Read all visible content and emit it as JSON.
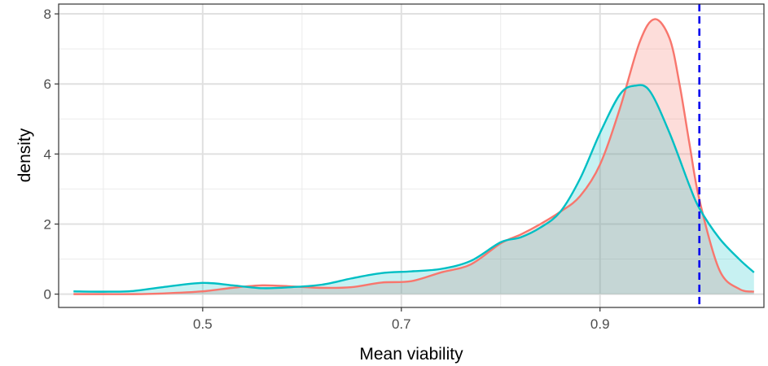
{
  "chart_data": {
    "type": "area",
    "xlabel": "Mean viability",
    "ylabel": "density",
    "xlim": [
      0.355,
      1.065
    ],
    "ylim": [
      -0.38,
      8.28
    ],
    "x_ticks": [
      0.5,
      0.7,
      0.9
    ],
    "x_tick_labels": [
      "0.5",
      "0.7",
      "0.9"
    ],
    "y_ticks": [
      0,
      2,
      4,
      6,
      8
    ],
    "y_tick_labels": [
      "0",
      "2",
      "4",
      "6",
      "8"
    ],
    "x_minor_ticks": [
      0.4,
      0.6,
      0.8,
      1.0
    ],
    "y_minor_ticks": [
      1,
      3,
      5,
      7
    ],
    "grid": true,
    "legend": "none",
    "reference_line": {
      "x": 1.0,
      "style": "dashed",
      "color": "#0000ee"
    },
    "series": [
      {
        "color": "#f8766d",
        "fill": "rgba(248,118,109,0.25)",
        "x": [
          0.37,
          0.4,
          0.43,
          0.46,
          0.5,
          0.53,
          0.56,
          0.59,
          0.62,
          0.65,
          0.68,
          0.71,
          0.74,
          0.77,
          0.8,
          0.82,
          0.84,
          0.86,
          0.88,
          0.9,
          0.92,
          0.94,
          0.955,
          0.97,
          0.98,
          0.99,
          1.0,
          1.02,
          1.04,
          1.055
        ],
        "y": [
          0.0,
          0.0,
          0.0,
          0.02,
          0.08,
          0.18,
          0.25,
          0.22,
          0.18,
          0.2,
          0.33,
          0.37,
          0.62,
          0.85,
          1.45,
          1.7,
          2.0,
          2.35,
          2.8,
          3.7,
          5.3,
          7.2,
          7.85,
          7.3,
          6.0,
          4.3,
          2.7,
          0.7,
          0.15,
          0.07
        ]
      },
      {
        "color": "#00bfc4",
        "fill": "rgba(0,191,196,0.22)",
        "x": [
          0.37,
          0.4,
          0.43,
          0.46,
          0.5,
          0.53,
          0.56,
          0.59,
          0.62,
          0.65,
          0.68,
          0.71,
          0.74,
          0.77,
          0.8,
          0.82,
          0.84,
          0.86,
          0.88,
          0.9,
          0.92,
          0.935,
          0.95,
          0.97,
          0.99,
          1.0,
          1.02,
          1.04,
          1.055
        ],
        "y": [
          0.08,
          0.07,
          0.09,
          0.2,
          0.32,
          0.25,
          0.17,
          0.2,
          0.27,
          0.45,
          0.6,
          0.65,
          0.72,
          0.95,
          1.48,
          1.62,
          1.9,
          2.35,
          3.3,
          4.6,
          5.7,
          5.95,
          5.8,
          4.6,
          3.1,
          2.45,
          1.6,
          1.0,
          0.62
        ]
      }
    ]
  }
}
